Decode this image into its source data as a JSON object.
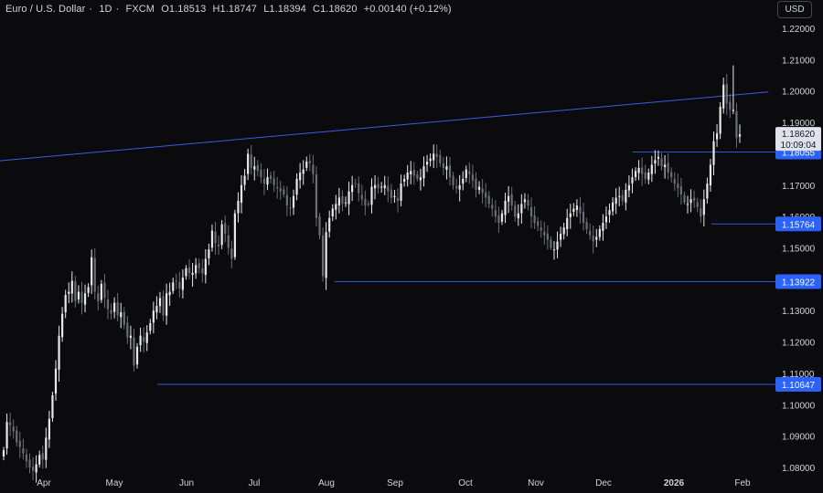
{
  "header": {
    "symbol": "Euro / U.S. Dollar",
    "interval": "1D",
    "source": "FXCM",
    "open": "O1.18513",
    "high": "H1.18747",
    "low": "L1.18394",
    "close": "C1.18620",
    "change": "+0.00140 (+0.12%)"
  },
  "currency_button": "USD",
  "colors": {
    "background": "#0b0b0e",
    "candle_up": "#e8e8ea",
    "candle_down": "#6b6e78",
    "trendline": "#3d5ddb",
    "level_line": "#2f55d4",
    "badge": "#2962ff",
    "price_badge": "#e0e3eb"
  },
  "chart_data": {
    "type": "candlestick",
    "y_axis_ticks": [
      "1.22000",
      "1.21000",
      "1.20000",
      "1.19000",
      "1.17000",
      "1.16000",
      "1.15000",
      "1.14000",
      "1.13000",
      "1.12000",
      "1.11000",
      "1.10000",
      "1.09000",
      "1.08000"
    ],
    "x_axis_ticks": [
      "Apr",
      "May",
      "Jun",
      "Jul",
      "Aug",
      "Sep",
      "Oct",
      "Nov",
      "Dec",
      "2026",
      "Feb"
    ],
    "ylim": [
      1.0775,
      1.2245
    ],
    "last_price": "1.18620",
    "countdown": "10:09:04",
    "levels": [
      {
        "label": "1.18055",
        "value": 1.18055,
        "start": "2025-12-15"
      },
      {
        "label": "1.15764",
        "value": 1.15764,
        "start": "2026-01-20"
      },
      {
        "label": "1.13922",
        "value": 1.13922,
        "start": "2025-08-01"
      },
      {
        "label": "1.10647",
        "value": 1.10647,
        "start": "2025-05-12"
      }
    ],
    "trendline": [
      {
        "date": "2025-02-25",
        "value": 1.1775
      },
      {
        "date": "2026-02-15",
        "value": 1.1997
      }
    ],
    "closes": [
      1.0855,
      1.0945,
      1.0935,
      1.0915,
      1.088,
      1.0865,
      1.0845,
      1.082,
      1.08,
      1.079,
      1.081,
      1.084,
      1.0825,
      1.0895,
      1.0955,
      1.103,
      1.1115,
      1.122,
      1.129,
      1.135,
      1.136,
      1.1395,
      1.133,
      1.136,
      1.1325,
      1.1355,
      1.1375,
      1.147,
      1.136,
      1.133,
      1.1385,
      1.134,
      1.1305,
      1.129,
      1.1325,
      1.1285,
      1.1295,
      1.1255,
      1.1215,
      1.122,
      1.1125,
      1.1185,
      1.122,
      1.12,
      1.123,
      1.126,
      1.13,
      1.1315,
      1.134,
      1.1285,
      1.1355,
      1.136,
      1.139,
      1.1395,
      1.137,
      1.1405,
      1.1435,
      1.142,
      1.142,
      1.1445,
      1.1435,
      1.142,
      1.1465,
      1.1495,
      1.1555,
      1.1515,
      1.1505,
      1.1575,
      1.1545,
      1.15,
      1.1465,
      1.161,
      1.165,
      1.17,
      1.173,
      1.18,
      1.1755,
      1.176,
      1.1745,
      1.1725,
      1.1705,
      1.1725,
      1.172,
      1.17,
      1.169,
      1.168,
      1.167,
      1.1635,
      1.1625,
      1.1665,
      1.172,
      1.174,
      1.175,
      1.1775,
      1.177,
      1.1735,
      1.1595,
      1.154,
      1.141,
      1.155,
      1.1595,
      1.1625,
      1.164,
      1.166,
      1.164,
      1.1645,
      1.168,
      1.17,
      1.1705,
      1.1675,
      1.1655,
      1.1635,
      1.164,
      1.1695,
      1.17,
      1.169,
      1.1695,
      1.17,
      1.168,
      1.166,
      1.1665,
      1.165,
      1.1705,
      1.172,
      1.174,
      1.1745,
      1.173,
      1.172,
      1.1725,
      1.176,
      1.1775,
      1.1785,
      1.18,
      1.179,
      1.177,
      1.1755,
      1.176,
      1.1725,
      1.17,
      1.169,
      1.17,
      1.172,
      1.175,
      1.1735,
      1.1715,
      1.1685,
      1.1695,
      1.1675,
      1.166,
      1.164,
      1.1625,
      1.16,
      1.158,
      1.161,
      1.165,
      1.1665,
      1.1635,
      1.16,
      1.161,
      1.164,
      1.1655,
      1.1635,
      1.16,
      1.158,
      1.157,
      1.1555,
      1.154,
      1.1525,
      1.15,
      1.1495,
      1.152,
      1.1545,
      1.1565,
      1.1595,
      1.161,
      1.1625,
      1.1635,
      1.161,
      1.158,
      1.156,
      1.154,
      1.152,
      1.1535,
      1.156,
      1.158,
      1.16,
      1.162,
      1.1645,
      1.166,
      1.1665,
      1.165,
      1.1685,
      1.17,
      1.1725,
      1.1745,
      1.1755,
      1.1735,
      1.172,
      1.174,
      1.1765,
      1.178,
      1.179,
      1.176,
      1.1765,
      1.174,
      1.1725,
      1.1705,
      1.169,
      1.167,
      1.1645,
      1.164,
      1.1655,
      1.165,
      1.163,
      1.16,
      1.1655,
      1.1705,
      1.1765,
      1.184,
      1.1865,
      1.195,
      1.202,
      1.196,
      1.194,
      1.194,
      1.185,
      1.1862
    ]
  }
}
